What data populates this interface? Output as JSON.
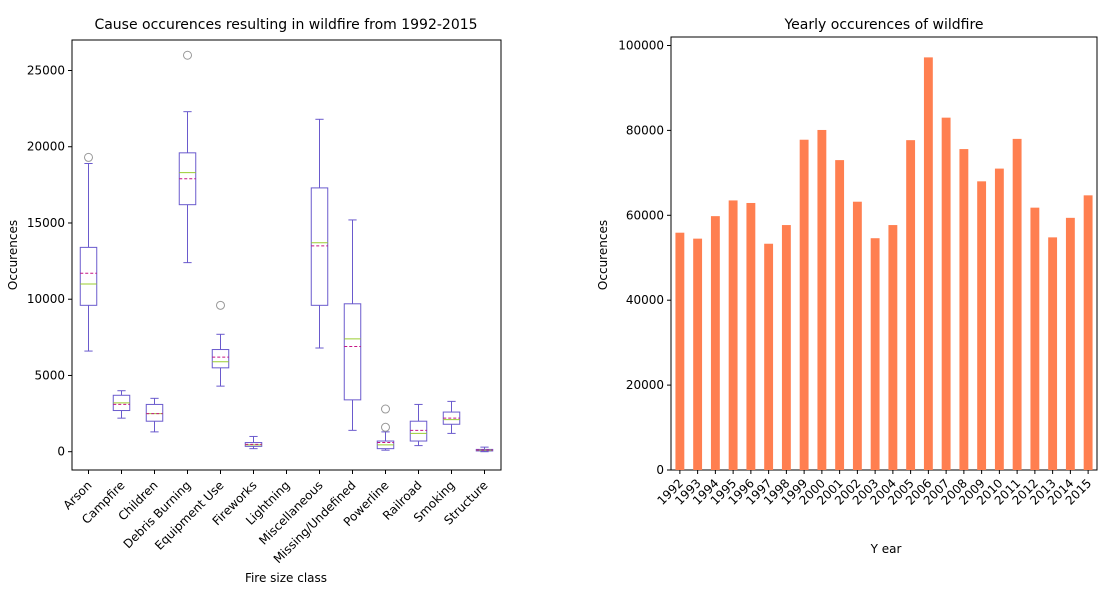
{
  "chart_data": [
    {
      "type": "box",
      "title": "Cause occurences resulting in wildfire from 1992-2015",
      "xlabel": "Fire size class",
      "ylabel": "Occurences",
      "ylim": [
        -1200,
        27000
      ],
      "yticks": [
        0,
        5000,
        10000,
        15000,
        20000,
        25000
      ],
      "colors": {
        "box": "#6a5acd",
        "median": "#9acd32",
        "mean": "#c71585",
        "outlier": "#999999"
      },
      "categories": [
        "Arson",
        "Campfire",
        "Children",
        "Debris Burning",
        "Equipment Use",
        "Fireworks",
        "Lightning",
        "Miscellaneous",
        "Missing/Undefined",
        "Powerline",
        "Railroad",
        "Smoking",
        "Structure"
      ],
      "boxes": [
        {
          "min": 6600,
          "q1": 9600,
          "median": 11000,
          "mean": 11700,
          "q3": 13400,
          "max": 18900,
          "outliers": [
            19300
          ]
        },
        {
          "min": 2200,
          "q1": 2700,
          "median": 3200,
          "mean": 3100,
          "q3": 3700,
          "max": 4000,
          "outliers": []
        },
        {
          "min": 1300,
          "q1": 2000,
          "median": 2500,
          "mean": 2500,
          "q3": 3100,
          "max": 3500,
          "outliers": []
        },
        {
          "min": 12400,
          "q1": 16200,
          "median": 18300,
          "mean": 17900,
          "q3": 19600,
          "max": 22300,
          "outliers": [
            26000
          ]
        },
        {
          "min": 4300,
          "q1": 5500,
          "median": 5900,
          "mean": 6200,
          "q3": 6700,
          "max": 7700,
          "outliers": [
            9600
          ]
        },
        {
          "min": 200,
          "q1": 350,
          "median": 450,
          "mean": 480,
          "q3": 600,
          "max": 1000,
          "outliers": []
        },
        {
          "min": null,
          "q1": null,
          "median": null,
          "mean": null,
          "q3": null,
          "max": null,
          "outliers": []
        },
        {
          "min": 6800,
          "q1": 9600,
          "median": 13700,
          "mean": 13500,
          "q3": 17300,
          "max": 21800,
          "outliers": []
        },
        {
          "min": 1400,
          "q1": 3400,
          "median": 7400,
          "mean": 6900,
          "q3": 9700,
          "max": 15200,
          "outliers": []
        },
        {
          "min": 100,
          "q1": 200,
          "median": 450,
          "mean": 600,
          "q3": 700,
          "max": 1300,
          "outliers": [
            1600,
            2800
          ]
        },
        {
          "min": 400,
          "q1": 700,
          "median": 1200,
          "mean": 1400,
          "q3": 2000,
          "max": 3100,
          "outliers": []
        },
        {
          "min": 1200,
          "q1": 1800,
          "median": 2100,
          "mean": 2200,
          "q3": 2600,
          "max": 3300,
          "outliers": []
        },
        {
          "min": 0,
          "q1": 50,
          "median": 100,
          "mean": 110,
          "q3": 150,
          "max": 300,
          "outliers": []
        }
      ]
    },
    {
      "type": "bar",
      "title": "Yearly occurences of wildfire",
      "xlabel": "Y ear",
      "ylabel": "Occurences",
      "ylim": [
        0,
        102000
      ],
      "yticks": [
        0,
        20000,
        40000,
        60000,
        80000,
        100000
      ],
      "color": "#ff7f50",
      "categories": [
        "1992",
        "1993",
        "1994",
        "1995",
        "1996",
        "1997",
        "1998",
        "1999",
        "2000",
        "2001",
        "2002",
        "2003",
        "2004",
        "2005",
        "2006",
        "2007",
        "2008",
        "2009",
        "2010",
        "2011",
        "2012",
        "2013",
        "2014",
        "2015"
      ],
      "values": [
        55900,
        54500,
        59800,
        63500,
        62900,
        53300,
        57700,
        77800,
        80100,
        73000,
        63200,
        54600,
        57700,
        77700,
        97200,
        83000,
        75600,
        68000,
        71000,
        78000,
        61800,
        54800,
        59400,
        64700
      ]
    }
  ]
}
